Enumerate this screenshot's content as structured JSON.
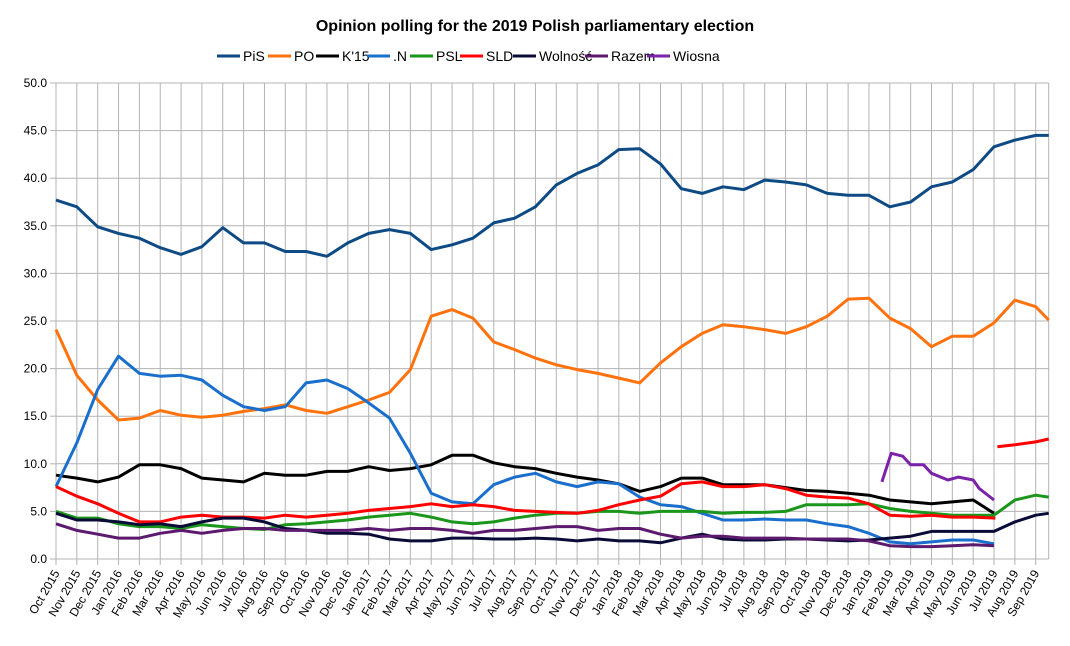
{
  "chart_data": {
    "type": "line",
    "title": "Opinion polling for the 2019 Polish parliamentary election",
    "xlabel": "",
    "ylabel": "",
    "ylim": [
      0,
      50
    ],
    "yticks": [
      "0.0",
      "5.0",
      "10.0",
      "15.0",
      "20.0",
      "25.0",
      "30.0",
      "35.0",
      "40.0",
      "45.0",
      "50.0"
    ],
    "xlim": [
      "2015-10-01",
      "2019-09-20"
    ],
    "xticks": [
      "Oct 2015",
      "Nov 2015",
      "Dec 2015",
      "Jan 2016",
      "Feb 2016",
      "Mar 2016",
      "Apr 2016",
      "May 2016",
      "Jun 2016",
      "Jul 2016",
      "Aug 2016",
      "Sep 2016",
      "Oct 2016",
      "Nov 2016",
      "Dec 2016",
      "Jan 2017",
      "Feb 2017",
      "Mar 2017",
      "Apr 2017",
      "May 2017",
      "Jun 2017",
      "Jul 2017",
      "Aug 2017",
      "Sep 2017",
      "Oct 2017",
      "Nov 2017",
      "Dec 2017",
      "Jan 2018",
      "Feb 2018",
      "Mar 2018",
      "Apr 2018",
      "May 2018",
      "Jun 2018",
      "Jul 2018",
      "Aug 2018",
      "Sep 2018",
      "Oct 2018",
      "Nov 2018",
      "Dec 2018",
      "Jan 2019",
      "Feb 2019",
      "Mar 2019",
      "Apr 2019",
      "May 2019",
      "Jun 2019",
      "Jul 2019",
      "Aug 2019",
      "Sep 2019"
    ],
    "grid": true,
    "legend_position": "top",
    "x": [
      "2015-10-01",
      "2015-11-01",
      "2015-12-01",
      "2016-01-01",
      "2016-02-01",
      "2016-03-01",
      "2016-04-01",
      "2016-05-01",
      "2016-06-01",
      "2016-07-01",
      "2016-08-01",
      "2016-09-01",
      "2016-10-01",
      "2016-11-01",
      "2016-12-01",
      "2017-01-01",
      "2017-02-01",
      "2017-03-01",
      "2017-04-01",
      "2017-05-01",
      "2017-06-01",
      "2017-07-01",
      "2017-08-01",
      "2017-09-01",
      "2017-10-01",
      "2017-11-01",
      "2017-12-01",
      "2018-01-01",
      "2018-02-01",
      "2018-03-01",
      "2018-04-01",
      "2018-05-01",
      "2018-06-01",
      "2018-07-01",
      "2018-08-01",
      "2018-09-01",
      "2018-10-01",
      "2018-11-01",
      "2018-12-01",
      "2019-01-01",
      "2019-02-01",
      "2019-03-01",
      "2019-04-01",
      "2019-05-01",
      "2019-06-01",
      "2019-07-01",
      "2019-08-01",
      "2019-09-01",
      "2019-09-20"
    ],
    "series": [
      {
        "name": "PiS",
        "color": "#0e4a84",
        "values": [
          37.7,
          37.0,
          34.9,
          34.2,
          33.7,
          32.7,
          32.0,
          32.8,
          34.8,
          33.2,
          33.2,
          32.3,
          32.3,
          31.8,
          33.2,
          34.2,
          34.6,
          34.2,
          32.5,
          33.0,
          33.7,
          35.3,
          35.8,
          37.0,
          39.3,
          40.5,
          41.4,
          43.0,
          43.1,
          41.5,
          38.9,
          38.4,
          39.1,
          38.8,
          39.8,
          39.6,
          39.3,
          38.4,
          38.2,
          38.2,
          37.0,
          37.5,
          39.1,
          39.6,
          40.9,
          43.3,
          44.0,
          44.5,
          44.5
        ]
      },
      {
        "name": "PO",
        "color": "#ff720e",
        "values": [
          24.1,
          19.3,
          16.7,
          14.6,
          14.8,
          15.6,
          15.1,
          14.9,
          15.1,
          15.5,
          15.8,
          16.2,
          15.6,
          15.3,
          16.0,
          16.7,
          17.5,
          19.9,
          25.5,
          26.2,
          25.3,
          22.8,
          22.0,
          21.1,
          20.4,
          19.9,
          19.5,
          19.0,
          18.5,
          20.6,
          22.3,
          23.7,
          24.6,
          24.4,
          24.1,
          23.7,
          24.4,
          25.5,
          27.3,
          27.4,
          25.3,
          24.2,
          22.3,
          23.4,
          23.4,
          24.8,
          27.2,
          26.5,
          25.1
        ]
      },
      {
        "name": "K'15",
        "color": "#000000",
        "values": [
          8.8,
          8.5,
          8.1,
          8.6,
          9.9,
          9.9,
          9.5,
          8.5,
          8.3,
          8.1,
          9.0,
          8.8,
          8.8,
          9.2,
          9.2,
          9.7,
          9.3,
          9.5,
          9.9,
          10.9,
          10.9,
          10.1,
          9.7,
          9.5,
          9.0,
          8.6,
          8.3,
          7.9,
          7.1,
          7.6,
          8.5,
          8.5,
          7.8,
          7.8,
          7.8,
          7.5,
          7.2,
          7.1,
          6.9,
          6.7,
          6.2,
          6.0,
          5.8,
          6.0,
          6.2,
          4.8,
          null,
          null,
          null
        ]
      },
      {
        "name": ".N",
        "color": "#1a6fcc",
        "values": [
          7.6,
          12.2,
          17.8,
          21.3,
          19.5,
          19.2,
          19.3,
          18.8,
          17.2,
          16.0,
          15.6,
          16.0,
          18.5,
          18.8,
          17.9,
          16.4,
          14.8,
          11.1,
          6.9,
          6.0,
          5.8,
          7.8,
          8.6,
          9.0,
          8.1,
          7.6,
          8.1,
          7.9,
          6.5,
          5.7,
          5.5,
          4.8,
          4.1,
          4.1,
          4.2,
          4.1,
          4.1,
          3.7,
          3.4,
          2.7,
          1.8,
          1.6,
          1.8,
          2.0,
          2.0,
          1.6,
          null,
          null,
          null
        ]
      },
      {
        "name": "PSL",
        "color": "#1a961a",
        "values": [
          5.0,
          4.3,
          4.3,
          3.7,
          3.4,
          3.4,
          3.2,
          3.6,
          3.4,
          3.2,
          3.1,
          3.6,
          3.7,
          3.9,
          4.1,
          4.4,
          4.6,
          4.8,
          4.4,
          3.9,
          3.7,
          3.9,
          4.3,
          4.6,
          4.8,
          4.8,
          5.0,
          5.0,
          4.8,
          5.0,
          5.0,
          5.0,
          4.8,
          4.9,
          4.9,
          5.0,
          5.7,
          5.7,
          5.7,
          5.8,
          5.3,
          5.0,
          4.8,
          4.6,
          4.6,
          4.6,
          6.2,
          6.7,
          6.5
        ]
      },
      {
        "name": "SLD",
        "color": "#ff0000",
        "x": [
          "2015-10-01",
          "2015-11-01",
          "2015-12-01",
          "2016-01-01",
          "2016-02-01",
          "2016-03-01",
          "2016-04-01",
          "2016-05-01",
          "2016-06-01",
          "2016-07-01",
          "2016-08-01",
          "2016-09-01",
          "2016-10-01",
          "2016-11-01",
          "2016-12-01",
          "2017-01-01",
          "2017-02-01",
          "2017-03-01",
          "2017-04-01",
          "2017-05-01",
          "2017-06-01",
          "2017-07-01",
          "2017-08-01",
          "2017-09-01",
          "2017-10-01",
          "2017-11-01",
          "2017-12-01",
          "2018-01-01",
          "2018-02-01",
          "2018-03-01",
          "2018-04-01",
          "2018-05-01",
          "2018-06-01",
          "2018-07-01",
          "2018-08-01",
          "2018-09-01",
          "2018-10-01",
          "2018-11-01",
          "2018-12-01",
          "2019-01-01",
          "2019-02-01",
          "2019-03-01",
          "2019-04-01",
          "2019-05-01",
          "2019-06-01",
          "2019-07-03",
          "2019-07-04",
          "2019-07-06",
          "2019-08-01",
          "2019-09-01",
          "2019-09-20"
        ],
        "values": [
          7.6,
          6.6,
          5.8,
          4.8,
          3.9,
          3.9,
          4.4,
          4.6,
          4.4,
          4.4,
          4.3,
          4.6,
          4.4,
          4.6,
          4.8,
          5.1,
          5.3,
          5.5,
          5.8,
          5.5,
          5.7,
          5.5,
          5.1,
          5.0,
          4.9,
          4.8,
          5.1,
          5.7,
          6.2,
          6.6,
          7.9,
          8.1,
          7.6,
          7.6,
          7.8,
          7.4,
          6.7,
          6.5,
          6.4,
          5.8,
          4.6,
          4.5,
          4.6,
          4.4,
          4.4,
          4.3,
          null,
          11.8,
          12.0,
          12.3,
          12.6
        ]
      },
      {
        "name": "Wolność",
        "color": "#0b0b38",
        "values": [
          4.8,
          4.1,
          4.1,
          3.9,
          3.6,
          3.7,
          3.4,
          3.9,
          4.3,
          4.3,
          3.9,
          3.2,
          3.0,
          2.7,
          2.7,
          2.6,
          2.1,
          1.9,
          1.9,
          2.2,
          2.2,
          2.1,
          2.1,
          2.2,
          2.1,
          1.9,
          2.1,
          1.9,
          1.9,
          1.7,
          2.2,
          2.6,
          2.1,
          2.0,
          2.0,
          2.1,
          2.1,
          2.0,
          1.9,
          2.0,
          2.2,
          2.4,
          2.9,
          2.9,
          2.9,
          2.9,
          3.9,
          4.6,
          4.8
        ]
      },
      {
        "name": "Razem",
        "color": "#5c1a6e",
        "values": [
          3.7,
          3.0,
          2.6,
          2.2,
          2.2,
          2.7,
          3.0,
          2.7,
          3.0,
          3.2,
          3.2,
          3.0,
          3.0,
          3.0,
          3.0,
          3.2,
          3.0,
          3.2,
          3.2,
          3.0,
          2.7,
          3.0,
          3.0,
          3.2,
          3.4,
          3.4,
          3.0,
          3.2,
          3.2,
          2.6,
          2.2,
          2.4,
          2.4,
          2.2,
          2.2,
          2.2,
          2.1,
          2.1,
          2.1,
          1.9,
          1.4,
          1.3,
          1.3,
          1.4,
          1.5,
          1.4,
          null,
          null,
          null
        ]
      },
      {
        "name": "Wiosna",
        "color": "#7a22a8",
        "x": [
          "2019-01-20",
          "2019-02-03",
          "2019-02-20",
          "2019-03-01",
          "2019-03-20",
          "2019-04-01",
          "2019-04-25",
          "2019-05-10",
          "2019-06-01",
          "2019-06-10",
          "2019-07-01"
        ],
        "values": [
          8.1,
          11.1,
          10.8,
          9.9,
          9.9,
          9.0,
          8.3,
          8.6,
          8.3,
          7.4,
          6.2
        ]
      }
    ]
  }
}
